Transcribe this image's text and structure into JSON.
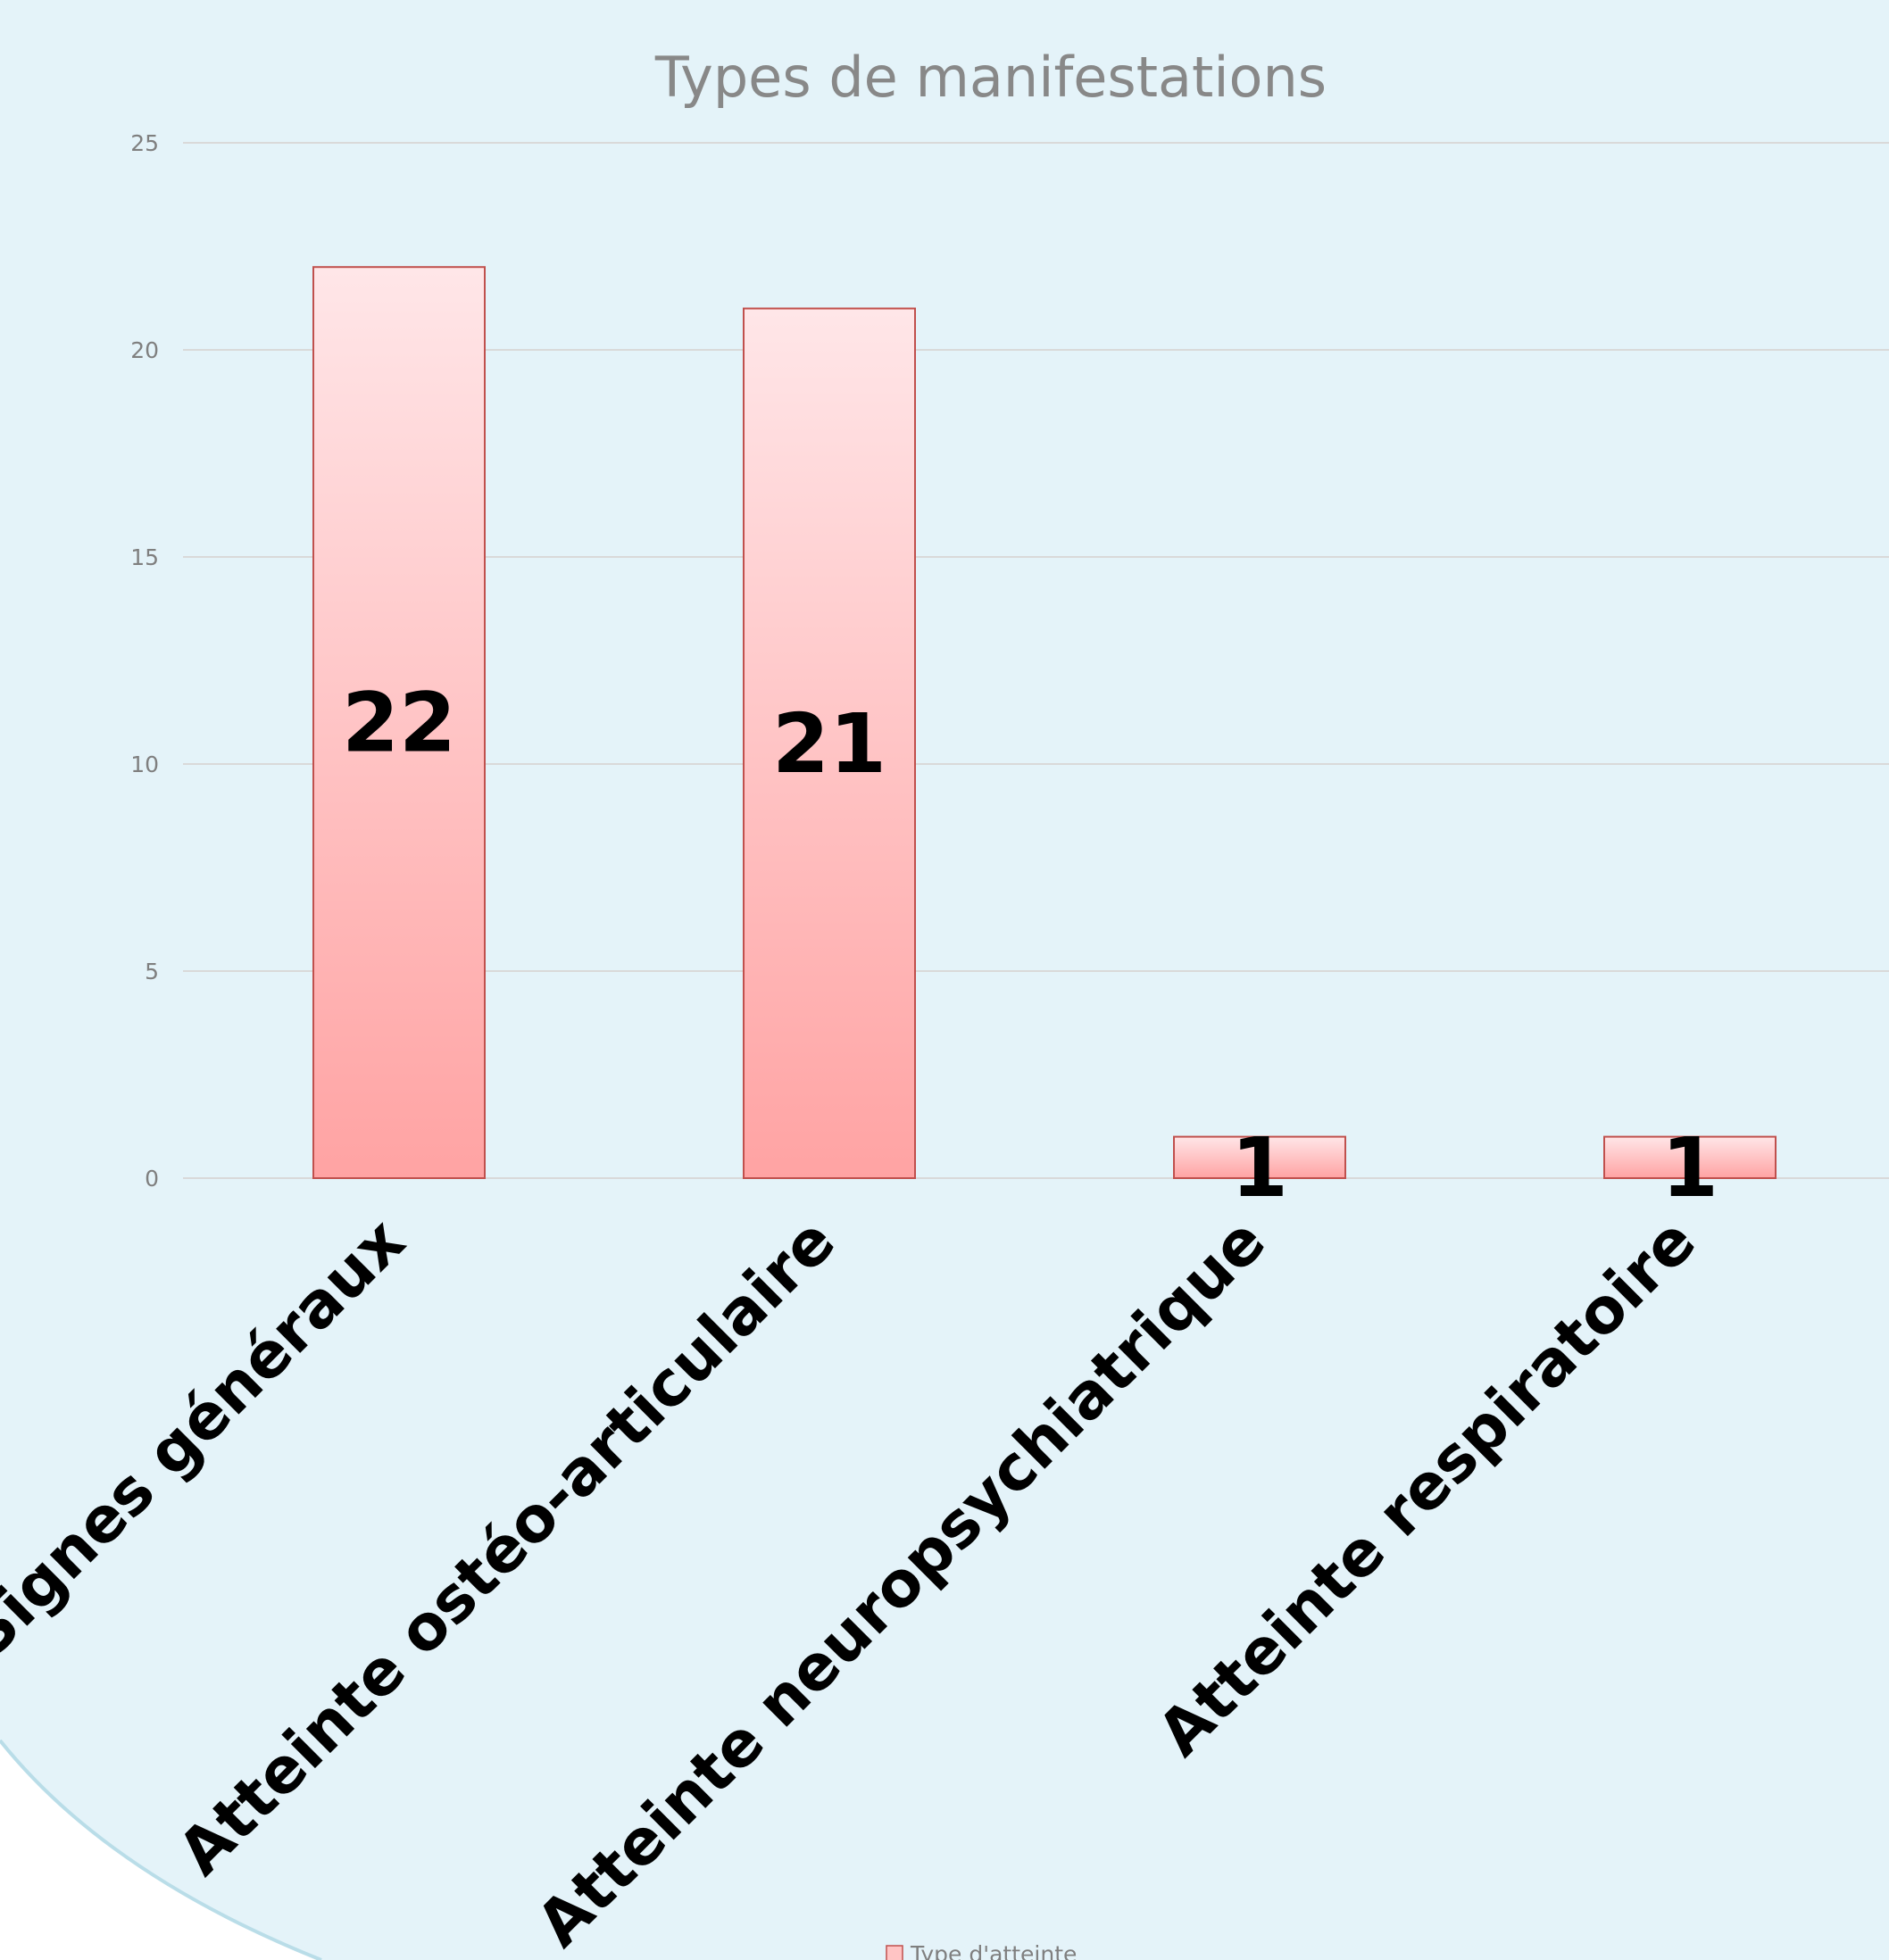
{
  "chart_data": {
    "type": "bar",
    "title": "Types de manifestations",
    "categories": [
      "Signes généraux",
      "Atteinte ostéo-articulaire",
      "Atteinte neuropsychiatrique",
      "Atteinte respiratoire"
    ],
    "series": [
      {
        "name": "Type d'atteinte",
        "values": [
          22,
          21,
          1,
          1
        ]
      }
    ],
    "ylim": [
      0,
      25
    ],
    "yticks": [
      "0",
      "5",
      "10",
      "15",
      "20",
      "25"
    ],
    "grid": true,
    "legend_position": "bottom",
    "colors": {
      "background": "#e4f3f9",
      "bar_top": "#ffe6e8",
      "bar_bottom": "#ffa3a3",
      "bar_stroke": "#c0504d",
      "gridline": "#d9d9d9"
    }
  }
}
